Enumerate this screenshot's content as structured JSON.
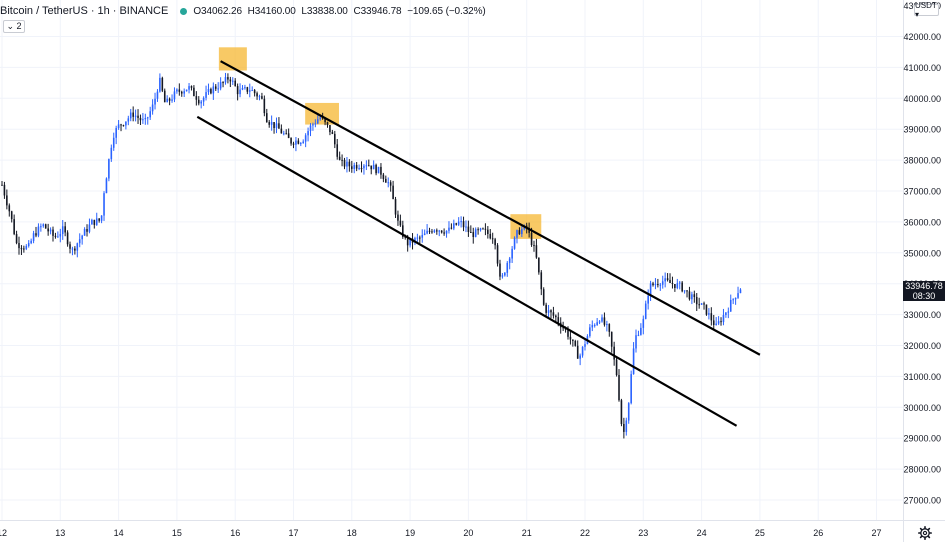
{
  "legend": {
    "symbol": "Bitcoin / TetherUS",
    "interval": "1h",
    "exchange": "BINANCE",
    "ohlc": {
      "o_label": "O",
      "o": "34062.26",
      "h_label": "H",
      "h": "34160.00",
      "l_label": "L",
      "l": "33838.00",
      "c_label": "C",
      "c": "33946.78",
      "change": "−109.65 (−0.32%)"
    },
    "status_color": "#26a69a",
    "indicator_toggle": "⌄ 2"
  },
  "currency_button": "USDT ▾",
  "last_price": {
    "price": "33946.78",
    "countdown": "08:30"
  },
  "settings_icon": "gear-icon",
  "colors": {
    "candle_up": "#2962ff",
    "candle_down": "#131722",
    "highlight": "#f5b731",
    "grid": "#f0f3fa",
    "axis_text": "#131722",
    "trendline": "#000000"
  },
  "chart_data": {
    "type": "candlestick",
    "title": "Bitcoin / TetherUS · 1h · BINANCE",
    "grid": true,
    "x_ticks": [
      "12",
      "13",
      "14",
      "15",
      "16",
      "17",
      "18",
      "19",
      "20",
      "21",
      "22",
      "23",
      "24",
      "25",
      "26",
      "27"
    ],
    "y_ticks": [
      "27000.00",
      "28000.00",
      "29000.00",
      "30000.00",
      "31000.00",
      "32000.00",
      "33000.00",
      "34000.00",
      "35000.00",
      "36000.00",
      "37000.00",
      "38000.00",
      "39000.00",
      "40000.00",
      "41000.00",
      "42000.00"
    ],
    "y_top_partial": "43000.00",
    "ylim": [
      26500,
      43200
    ],
    "xlim": [
      12.0,
      27.55
    ],
    "price_path": [
      [
        12.0,
        37200
      ],
      [
        12.15,
        36200
      ],
      [
        12.25,
        35300
      ],
      [
        12.45,
        35150
      ],
      [
        12.55,
        35600
      ],
      [
        12.7,
        35900
      ],
      [
        12.9,
        35500
      ],
      [
        13.05,
        35750
      ],
      [
        13.2,
        35050
      ],
      [
        13.35,
        35500
      ],
      [
        13.55,
        36000
      ],
      [
        13.7,
        36050
      ],
      [
        13.75,
        37000
      ],
      [
        13.9,
        38800
      ],
      [
        14.0,
        39100
      ],
      [
        14.25,
        39500
      ],
      [
        14.45,
        39200
      ],
      [
        14.6,
        39800
      ],
      [
        14.7,
        40600
      ],
      [
        14.8,
        39800
      ],
      [
        15.0,
        40200
      ],
      [
        15.2,
        40350
      ],
      [
        15.4,
        39900
      ],
      [
        15.6,
        40300
      ],
      [
        15.8,
        40500
      ],
      [
        15.9,
        40700
      ],
      [
        16.05,
        40200
      ],
      [
        16.25,
        40300
      ],
      [
        16.45,
        40000
      ],
      [
        16.55,
        39300
      ],
      [
        16.75,
        39000
      ],
      [
        16.95,
        38600
      ],
      [
        17.15,
        38650
      ],
      [
        17.3,
        39100
      ],
      [
        17.45,
        39400
      ],
      [
        17.65,
        38900
      ],
      [
        17.8,
        37900
      ],
      [
        18.0,
        37800
      ],
      [
        18.25,
        37900
      ],
      [
        18.5,
        37600
      ],
      [
        18.65,
        37200
      ],
      [
        18.8,
        35900
      ],
      [
        18.95,
        35300
      ],
      [
        19.2,
        35500
      ],
      [
        19.4,
        35800
      ],
      [
        19.65,
        35700
      ],
      [
        19.85,
        36000
      ],
      [
        20.05,
        35600
      ],
      [
        20.25,
        35700
      ],
      [
        20.45,
        35500
      ],
      [
        20.55,
        34000
      ],
      [
        20.7,
        34900
      ],
      [
        20.85,
        35700
      ],
      [
        21.0,
        35800
      ],
      [
        21.15,
        35000
      ],
      [
        21.3,
        33200
      ],
      [
        21.5,
        32900
      ],
      [
        21.7,
        32400
      ],
      [
        21.9,
        31600
      ],
      [
        22.1,
        32600
      ],
      [
        22.25,
        32900
      ],
      [
        22.4,
        32500
      ],
      [
        22.55,
        31000
      ],
      [
        22.65,
        29000
      ],
      [
        22.75,
        30200
      ],
      [
        22.85,
        32200
      ],
      [
        23.0,
        32800
      ],
      [
        23.1,
        33900
      ],
      [
        23.3,
        34100
      ],
      [
        23.5,
        34000
      ],
      [
        23.65,
        33900
      ],
      [
        23.85,
        33500
      ],
      [
        24.05,
        33200
      ],
      [
        24.25,
        32600
      ],
      [
        24.45,
        33200
      ],
      [
        24.6,
        33700
      ],
      [
        24.7,
        33946.78
      ]
    ],
    "trendlines": [
      {
        "name": "upper",
        "from": [
          15.75,
          41200
        ],
        "to": [
          25.0,
          31700
        ]
      },
      {
        "name": "lower",
        "from": [
          15.35,
          39400
        ],
        "to": [
          24.6,
          29400
        ]
      }
    ],
    "highlight_zones": [
      {
        "x": [
          15.72,
          16.2
        ],
        "y": [
          40900,
          41650
        ]
      },
      {
        "x": [
          17.2,
          17.78
        ],
        "y": [
          39150,
          39850
        ]
      },
      {
        "x": [
          20.72,
          21.25
        ],
        "y": [
          35450,
          36250
        ]
      }
    ]
  }
}
